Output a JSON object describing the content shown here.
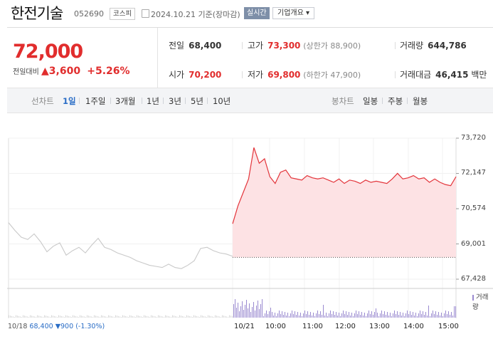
{
  "header": {
    "name": "한전기술",
    "code": "052690",
    "market": "코스피",
    "date": "2024.10.21",
    "basis": "기준(장마감)",
    "realtime": "실시간",
    "company_overview": "기업개요"
  },
  "summary": {
    "price": "72,000",
    "change_label": "전일대비",
    "change_arrow": "▲",
    "change_value": "3,600",
    "change_pct": "+5.26%",
    "prev_label": "전일",
    "prev": "68,400",
    "open_label": "시가",
    "open": "70,200",
    "high_label": "고가",
    "high": "73,300",
    "upper_limit": "(상한가 88,900)",
    "low_label": "저가",
    "low": "69,800",
    "lower_limit": "(하한가 47,900)",
    "volume_label": "거래량",
    "volume": "644,786",
    "value_label": "거래대금",
    "value": "46,415",
    "value_unit": "백만"
  },
  "periods": {
    "line_label": "선차트",
    "items": [
      "1일",
      "1주일",
      "3개월",
      "1년",
      "3년",
      "5년",
      "10년"
    ],
    "active": "1일",
    "candle_label": "봉차트",
    "candle_items": [
      "일봉",
      "주봉",
      "월봉"
    ]
  },
  "chart_data": {
    "type": "line",
    "y_ticks": [
      "73,720",
      "72,147",
      "70,574",
      "69,001",
      "67,428"
    ],
    "ylim": [
      67428,
      73720
    ],
    "x_ticks": [
      "10/21",
      "10:00",
      "11:00",
      "12:00",
      "13:00",
      "14:00",
      "15:00"
    ],
    "prev_close": 68400,
    "prev_day_series": [
      69950,
      69600,
      69300,
      69200,
      69450,
      69100,
      68650,
      68900,
      69050,
      68500,
      68700,
      68850,
      68600,
      68950,
      69250,
      68850,
      68750,
      68600,
      68500,
      68400,
      68250,
      68150,
      68050,
      68000,
      67950,
      68100,
      67950,
      67900,
      68050,
      68250,
      68800,
      68850,
      68700,
      68600,
      68550,
      68450
    ],
    "today_series": [
      69900,
      70700,
      71300,
      71900,
      73300,
      72600,
      72800,
      72000,
      71700,
      72200,
      72300,
      71950,
      71900,
      71850,
      72050,
      71950,
      71900,
      71950,
      71850,
      71750,
      71900,
      71700,
      71850,
      71800,
      71700,
      71850,
      71750,
      71800,
      71750,
      71700,
      71900,
      72150,
      71900,
      71950,
      72050,
      71900,
      71950,
      71750,
      71900,
      71750,
      71650,
      71600,
      72000
    ],
    "volume_label": "거래량"
  },
  "bottom": {
    "date": "10/18",
    "price": "68,400",
    "arrow": "▼",
    "change": "900",
    "pct": "(-1.30%)"
  },
  "colors": {
    "up": "#e12d2d",
    "down": "#2a6dc6",
    "accent": "#7e8fa8"
  }
}
